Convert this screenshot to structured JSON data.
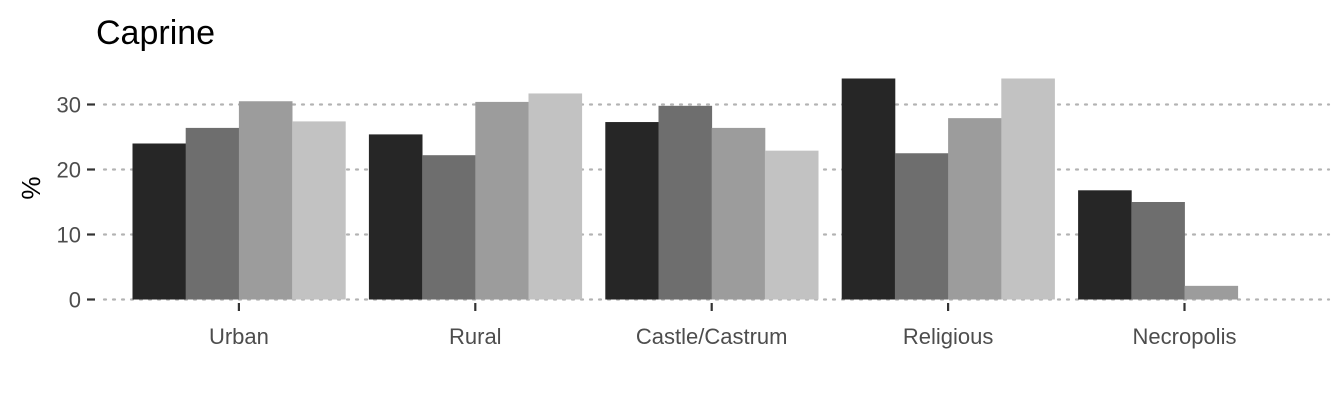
{
  "chart_data": {
    "type": "bar",
    "title": "Caprine",
    "xlabel": "",
    "ylabel": "%",
    "ylim": [
      0,
      36
    ],
    "yticks": [
      0,
      10,
      20,
      30
    ],
    "grid": "horizontal-dotted",
    "categories": [
      "Urban",
      "Rural",
      "Castle/Castrum",
      "Religious",
      "Necropolis"
    ],
    "series": [
      {
        "color": "#262626",
        "values": [
          24.0,
          25.4,
          27.3,
          34.0,
          16.8
        ]
      },
      {
        "color": "#6e6e6e",
        "values": [
          26.4,
          22.2,
          29.8,
          22.5,
          15.0
        ]
      },
      {
        "color": "#9c9c9c",
        "values": [
          30.5,
          30.4,
          26.4,
          27.9,
          2.1
        ]
      },
      {
        "color": "#c2c2c2",
        "values": [
          27.4,
          31.7,
          22.9,
          34.0,
          null
        ]
      }
    ]
  }
}
